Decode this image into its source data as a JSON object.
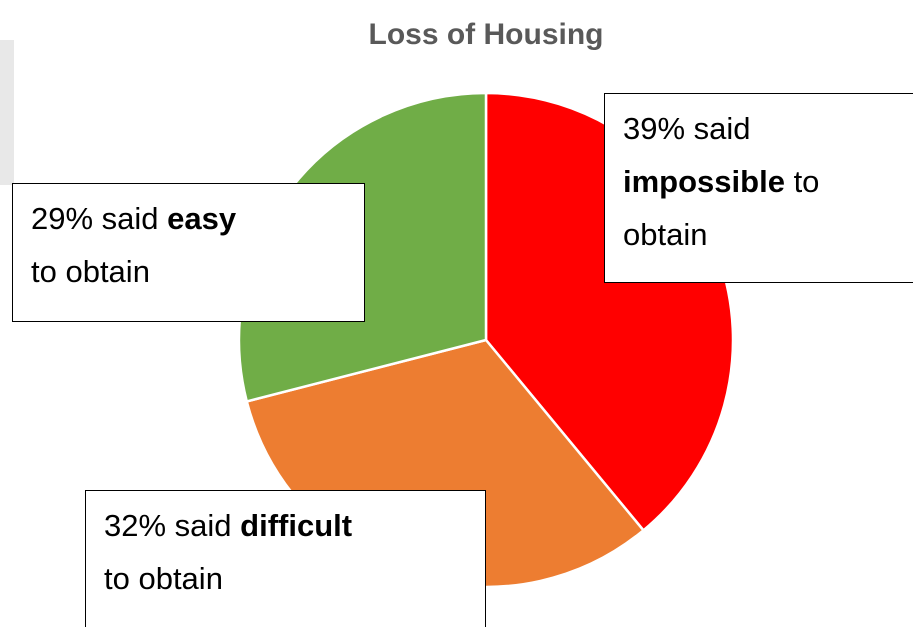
{
  "chart_data": {
    "type": "pie",
    "title": "Loss of Housing",
    "categories": [
      "impossible",
      "difficult",
      "easy"
    ],
    "values": [
      39,
      32,
      29
    ],
    "value_labels": [
      "39%",
      "32%",
      "29%"
    ],
    "label_before": "said",
    "label_after": "to obtain",
    "colors": [
      "#ff0000",
      "#ed7d31",
      "#70ad47"
    ]
  }
}
